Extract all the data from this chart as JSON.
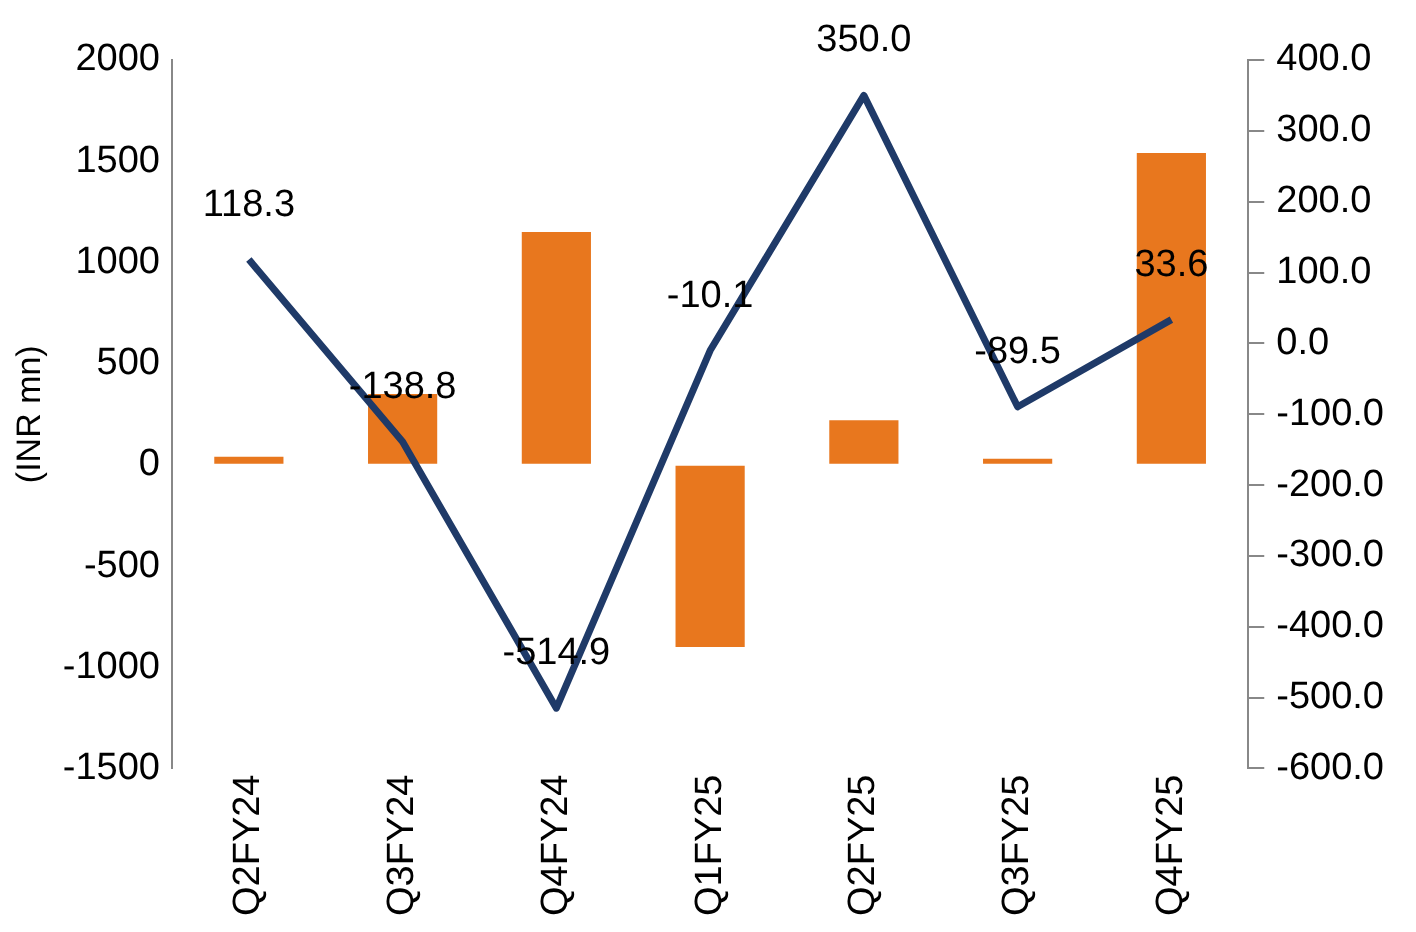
{
  "chart_data": {
    "type": "bar",
    "ylabel": "(INR mn)",
    "categories": [
      "Q2FY24",
      "Q3FY24",
      "Q4FY24",
      "Q1FY25",
      "Q2FY25",
      "Q3FY25",
      "Q4FY25"
    ],
    "series": [
      {
        "color": "#e8771e",
        "values": [
          40,
          350,
          1150,
          -900,
          220,
          30,
          1540
        ]
      },
      {
        "type": "line",
        "axis": "y2",
        "color": "#1f3a68",
        "values": [
          118.3,
          -138.8,
          -514.9,
          -10.1,
          350.0,
          -89.5,
          33.6
        ],
        "value_labels": [
          "118.3",
          "-138.8",
          "-514.9",
          "-10.1",
          "350.0",
          "-89.5",
          "33.6"
        ]
      }
    ],
    "ylim": [
      -1500,
      2000
    ],
    "yticks": [
      -1500,
      -1000,
      -500,
      0,
      500,
      1000,
      1500,
      2000
    ],
    "y2lim": [
      -600,
      400
    ],
    "y2ticks": [
      {
        "value": -600,
        "label": "-600.0"
      },
      {
        "value": -500,
        "label": "-500.0"
      },
      {
        "value": -400,
        "label": "-400.0"
      },
      {
        "value": -300,
        "label": "-300.0"
      },
      {
        "value": -200,
        "label": "-200.0"
      },
      {
        "value": -100,
        "label": "-100.0"
      },
      {
        "value": 0,
        "label": "0.0"
      },
      {
        "value": 100,
        "label": "100.0"
      },
      {
        "value": 200,
        "label": "200.0"
      },
      {
        "value": 300,
        "label": "300.0"
      },
      {
        "value": 400,
        "label": "400.0"
      }
    ],
    "grid": false,
    "legend": false,
    "marker": "none",
    "line_style": "solid"
  }
}
